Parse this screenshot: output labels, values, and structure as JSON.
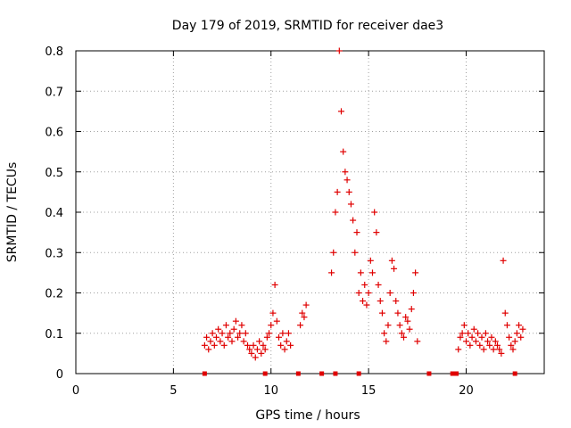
{
  "chart_data": {
    "type": "scatter",
    "title": "Day 179 of 2019, SRMTID for receiver dae3",
    "xlabel": "GPS time / hours",
    "ylabel": "SRMTID / TECUs",
    "xlim": [
      0,
      24
    ],
    "ylim": [
      0,
      0.8
    ],
    "xticks": [
      "0",
      "5",
      "10",
      "15",
      "20"
    ],
    "yticks": [
      "0",
      "0.1",
      "0.2",
      "0.3",
      "0.4",
      "0.5",
      "0.6",
      "0.7",
      "0.8"
    ],
    "grid": true,
    "marker": "+",
    "color": "#e00000",
    "series": [
      {
        "name": "SRMTID",
        "x": [
          6.6,
          6.7,
          6.8,
          6.9,
          7.0,
          7.1,
          7.2,
          7.3,
          7.4,
          7.5,
          7.6,
          7.7,
          7.8,
          7.9,
          8.0,
          8.1,
          8.2,
          8.3,
          8.4,
          8.5,
          8.6,
          8.7,
          8.8,
          8.9,
          9.0,
          9.1,
          9.2,
          9.3,
          9.4,
          9.5,
          9.6,
          9.7,
          9.8,
          9.9,
          10.0,
          10.1,
          10.2,
          10.3,
          10.4,
          10.5,
          10.6,
          10.7,
          10.8,
          10.9,
          11.0,
          11.5,
          11.6,
          11.7,
          11.8,
          13.1,
          13.2,
          13.3,
          13.4,
          13.5,
          13.6,
          13.7,
          13.8,
          13.9,
          14.0,
          14.1,
          14.2,
          14.3,
          14.4,
          14.5,
          14.6,
          14.7,
          14.8,
          14.9,
          15.0,
          15.1,
          15.2,
          15.3,
          15.4,
          15.5,
          15.6,
          15.7,
          15.8,
          15.9,
          16.0,
          16.1,
          16.2,
          16.3,
          16.4,
          16.5,
          16.6,
          16.7,
          16.8,
          16.9,
          17.0,
          17.1,
          17.2,
          17.3,
          17.4,
          17.5,
          19.6,
          19.7,
          19.8,
          19.9,
          20.0,
          20.1,
          20.2,
          20.3,
          20.4,
          20.5,
          20.6,
          20.7,
          20.8,
          20.9,
          21.0,
          21.1,
          21.2,
          21.3,
          21.4,
          21.5,
          21.6,
          21.7,
          21.8,
          21.9,
          22.0,
          22.1,
          22.2,
          22.3,
          22.4,
          22.5,
          22.6,
          22.7,
          22.8,
          22.9
        ],
        "y": [
          0.07,
          0.09,
          0.06,
          0.08,
          0.1,
          0.07,
          0.09,
          0.11,
          0.08,
          0.1,
          0.07,
          0.12,
          0.09,
          0.1,
          0.08,
          0.11,
          0.13,
          0.09,
          0.1,
          0.12,
          0.08,
          0.1,
          0.07,
          0.06,
          0.05,
          0.07,
          0.04,
          0.06,
          0.08,
          0.05,
          0.07,
          0.06,
          0.09,
          0.1,
          0.12,
          0.15,
          0.22,
          0.13,
          0.09,
          0.07,
          0.1,
          0.06,
          0.08,
          0.1,
          0.07,
          0.12,
          0.15,
          0.14,
          0.17,
          0.25,
          0.3,
          0.4,
          0.45,
          0.8,
          0.65,
          0.55,
          0.5,
          0.48,
          0.45,
          0.42,
          0.38,
          0.3,
          0.35,
          0.2,
          0.25,
          0.18,
          0.22,
          0.17,
          0.2,
          0.28,
          0.25,
          0.4,
          0.35,
          0.22,
          0.18,
          0.15,
          0.1,
          0.08,
          0.12,
          0.2,
          0.28,
          0.26,
          0.18,
          0.15,
          0.12,
          0.1,
          0.09,
          0.14,
          0.13,
          0.11,
          0.16,
          0.2,
          0.25,
          0.08,
          0.06,
          0.09,
          0.1,
          0.12,
          0.08,
          0.1,
          0.07,
          0.09,
          0.11,
          0.08,
          0.1,
          0.07,
          0.09,
          0.06,
          0.1,
          0.08,
          0.07,
          0.09,
          0.06,
          0.08,
          0.07,
          0.06,
          0.05,
          0.28,
          0.15,
          0.12,
          0.09,
          0.07,
          0.06,
          0.08,
          0.1,
          0.12,
          0.09,
          0.11
        ]
      }
    ],
    "zero_markers_x": [
      6.6,
      9.7,
      11.4,
      12.6,
      13.3,
      14.5,
      18.1,
      19.3,
      19.5,
      22.5
    ]
  }
}
